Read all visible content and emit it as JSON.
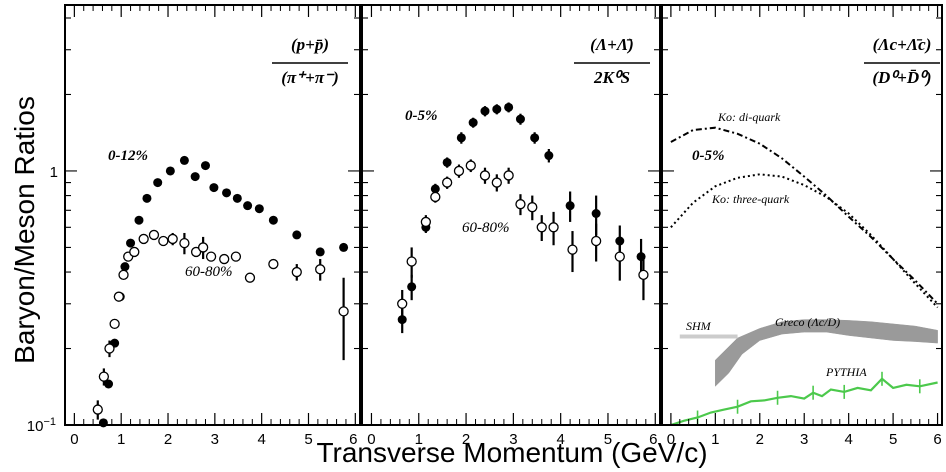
{
  "chart_data": {
    "type": "scatter",
    "ylabel": "Baryon/Meson Ratios",
    "xlabel": "Transverse Momentum (GeV/c)",
    "y_scale": "log",
    "ylim": [
      0.1,
      4.5
    ],
    "y_ticks": [
      {
        "value": 0.1,
        "base": "10",
        "exp": "−1"
      },
      {
        "value": 1,
        "label": "1"
      }
    ],
    "xlim": [
      -0.2,
      6.1
    ],
    "x_ticks": [
      "0",
      "1",
      "2",
      "3",
      "4",
      "5",
      "6"
    ],
    "panels": [
      {
        "ratio_num": "(p+p̄)",
        "ratio_den": "(π⁺+π⁻)",
        "series": [
          {
            "label": "0-12%",
            "marker": "filled",
            "points": [
              {
                "x": 0.62,
                "y": 0.102
              },
              {
                "x": 0.73,
                "y": 0.145
              },
              {
                "x": 0.86,
                "y": 0.21
              },
              {
                "x": 0.98,
                "y": 0.32
              },
              {
                "x": 1.08,
                "y": 0.42
              },
              {
                "x": 1.2,
                "y": 0.52
              },
              {
                "x": 1.38,
                "y": 0.64
              },
              {
                "x": 1.55,
                "y": 0.78
              },
              {
                "x": 1.78,
                "y": 0.9
              },
              {
                "x": 2.05,
                "y": 1.0
              },
              {
                "x": 2.35,
                "y": 1.1
              },
              {
                "x": 2.58,
                "y": 0.95
              },
              {
                "x": 2.8,
                "y": 1.05
              },
              {
                "x": 2.98,
                "y": 0.86
              },
              {
                "x": 3.25,
                "y": 0.82
              },
              {
                "x": 3.48,
                "y": 0.78
              },
              {
                "x": 3.7,
                "y": 0.73
              },
              {
                "x": 3.95,
                "y": 0.71
              },
              {
                "x": 4.25,
                "y": 0.64
              },
              {
                "x": 4.75,
                "y": 0.56
              },
              {
                "x": 5.25,
                "y": 0.48
              },
              {
                "x": 5.75,
                "y": 0.5
              }
            ]
          },
          {
            "label": "60-80%",
            "marker": "open",
            "points": [
              {
                "x": 0.5,
                "y": 0.115,
                "err": 0.01
              },
              {
                "x": 0.63,
                "y": 0.155,
                "err": 0.012
              },
              {
                "x": 0.75,
                "y": 0.2,
                "err": 0.015
              },
              {
                "x": 0.86,
                "y": 0.25
              },
              {
                "x": 0.95,
                "y": 0.32
              },
              {
                "x": 1.05,
                "y": 0.39
              },
              {
                "x": 1.15,
                "y": 0.46
              },
              {
                "x": 1.28,
                "y": 0.48
              },
              {
                "x": 1.48,
                "y": 0.54
              },
              {
                "x": 1.7,
                "y": 0.56
              },
              {
                "x": 1.9,
                "y": 0.53
              },
              {
                "x": 2.1,
                "y": 0.54,
                "err": 0.03
              },
              {
                "x": 2.35,
                "y": 0.52,
                "err": 0.05
              },
              {
                "x": 2.6,
                "y": 0.48
              },
              {
                "x": 2.75,
                "y": 0.5,
                "err": 0.05
              },
              {
                "x": 2.92,
                "y": 0.46
              },
              {
                "x": 3.2,
                "y": 0.45
              },
              {
                "x": 3.45,
                "y": 0.46
              },
              {
                "x": 3.75,
                "y": 0.38
              },
              {
                "x": 4.25,
                "y": 0.43
              },
              {
                "x": 4.75,
                "y": 0.4,
                "err": 0.03
              },
              {
                "x": 5.25,
                "y": 0.41,
                "err": 0.04
              },
              {
                "x": 5.75,
                "y": 0.28,
                "err": 0.1
              }
            ]
          }
        ]
      },
      {
        "ratio_num": "(Λ+Λ̄)",
        "ratio_den": "2K⁰S",
        "series": [
          {
            "label": "0-5%",
            "marker": "filled",
            "points": [
              {
                "x": 0.65,
                "y": 0.26,
                "err": 0.03
              },
              {
                "x": 0.85,
                "y": 0.35,
                "err": 0.04
              },
              {
                "x": 1.15,
                "y": 0.6,
                "err": 0.03
              },
              {
                "x": 1.35,
                "y": 0.85,
                "err": 0.04
              },
              {
                "x": 1.6,
                "y": 1.08,
                "err": 0.05
              },
              {
                "x": 1.9,
                "y": 1.35,
                "err": 0.07
              },
              {
                "x": 2.15,
                "y": 1.55,
                "err": 0.07
              },
              {
                "x": 2.4,
                "y": 1.72,
                "err": 0.08
              },
              {
                "x": 2.65,
                "y": 1.75,
                "err": 0.08
              },
              {
                "x": 2.9,
                "y": 1.78,
                "err": 0.08
              },
              {
                "x": 3.15,
                "y": 1.6,
                "err": 0.08
              },
              {
                "x": 3.45,
                "y": 1.35,
                "err": 0.07
              },
              {
                "x": 3.75,
                "y": 1.15,
                "err": 0.07
              },
              {
                "x": 4.2,
                "y": 0.73,
                "err": 0.1
              },
              {
                "x": 4.75,
                "y": 0.68,
                "err": 0.12
              },
              {
                "x": 5.25,
                "y": 0.53,
                "err": 0.08
              },
              {
                "x": 5.7,
                "y": 0.46,
                "err": 0.08
              }
            ]
          },
          {
            "label": "60-80%",
            "marker": "open",
            "points": [
              {
                "x": 0.65,
                "y": 0.3,
                "err": 0.04
              },
              {
                "x": 0.85,
                "y": 0.44,
                "err": 0.06
              },
              {
                "x": 1.15,
                "y": 0.63,
                "err": 0.04
              },
              {
                "x": 1.35,
                "y": 0.79,
                "err": 0.04
              },
              {
                "x": 1.6,
                "y": 0.9,
                "err": 0.05
              },
              {
                "x": 1.85,
                "y": 1.0,
                "err": 0.06
              },
              {
                "x": 2.1,
                "y": 1.05,
                "err": 0.06
              },
              {
                "x": 2.4,
                "y": 0.96,
                "err": 0.07
              },
              {
                "x": 2.65,
                "y": 0.9,
                "err": 0.07
              },
              {
                "x": 2.9,
                "y": 0.96,
                "err": 0.07
              },
              {
                "x": 3.15,
                "y": 0.74,
                "err": 0.07
              },
              {
                "x": 3.4,
                "y": 0.72,
                "err": 0.08
              },
              {
                "x": 3.6,
                "y": 0.6,
                "err": 0.07
              },
              {
                "x": 3.85,
                "y": 0.6,
                "err": 0.09
              },
              {
                "x": 4.25,
                "y": 0.49,
                "err": 0.09
              },
              {
                "x": 4.75,
                "y": 0.53,
                "err": 0.09
              },
              {
                "x": 5.25,
                "y": 0.46,
                "err": 0.09
              },
              {
                "x": 5.75,
                "y": 0.39,
                "err": 0.08
              }
            ]
          }
        ]
      },
      {
        "ratio_num": "(Λc+Λ̄c)",
        "ratio_den": "(D⁰+D̄⁰)",
        "centrality_label": "0-5%",
        "curves": [
          {
            "label": "Ko: di-quark",
            "style": "dashdot",
            "points": [
              {
                "x": 0,
                "y": 1.3
              },
              {
                "x": 0.5,
                "y": 1.45
              },
              {
                "x": 1,
                "y": 1.48
              },
              {
                "x": 1.5,
                "y": 1.4
              },
              {
                "x": 2,
                "y": 1.28
              },
              {
                "x": 2.5,
                "y": 1.12
              },
              {
                "x": 3,
                "y": 0.95
              },
              {
                "x": 3.5,
                "y": 0.8
              },
              {
                "x": 4,
                "y": 0.66
              },
              {
                "x": 4.5,
                "y": 0.55
              },
              {
                "x": 5,
                "y": 0.45
              },
              {
                "x": 5.5,
                "y": 0.37
              },
              {
                "x": 6,
                "y": 0.3
              }
            ]
          },
          {
            "label": "Ko: three-quark",
            "style": "dotted",
            "points": [
              {
                "x": 0,
                "y": 0.6
              },
              {
                "x": 0.5,
                "y": 0.75
              },
              {
                "x": 1,
                "y": 0.87
              },
              {
                "x": 1.5,
                "y": 0.94
              },
              {
                "x": 2,
                "y": 0.97
              },
              {
                "x": 2.5,
                "y": 0.95
              },
              {
                "x": 3,
                "y": 0.88
              },
              {
                "x": 3.5,
                "y": 0.79
              },
              {
                "x": 4,
                "y": 0.68
              },
              {
                "x": 4.5,
                "y": 0.56
              },
              {
                "x": 5,
                "y": 0.45
              },
              {
                "x": 5.5,
                "y": 0.36
              },
              {
                "x": 6,
                "y": 0.29
              }
            ]
          },
          {
            "label": "PYTHIA",
            "style": "green",
            "points": [
              {
                "x": 0,
                "y": 0.1
              },
              {
                "x": 0.3,
                "y": 0.104
              },
              {
                "x": 0.6,
                "y": 0.107
              },
              {
                "x": 0.9,
                "y": 0.112
              },
              {
                "x": 1.2,
                "y": 0.115
              },
              {
                "x": 1.5,
                "y": 0.118
              },
              {
                "x": 1.8,
                "y": 0.124
              },
              {
                "x": 2.1,
                "y": 0.125
              },
              {
                "x": 2.4,
                "y": 0.128
              },
              {
                "x": 2.7,
                "y": 0.13
              },
              {
                "x": 3.0,
                "y": 0.127
              },
              {
                "x": 3.2,
                "y": 0.134
              },
              {
                "x": 3.4,
                "y": 0.13
              },
              {
                "x": 3.6,
                "y": 0.138
              },
              {
                "x": 3.9,
                "y": 0.135
              },
              {
                "x": 4.2,
                "y": 0.14
              },
              {
                "x": 4.5,
                "y": 0.137
              },
              {
                "x": 4.75,
                "y": 0.152
              },
              {
                "x": 5.0,
                "y": 0.14
              },
              {
                "x": 5.3,
                "y": 0.144
              },
              {
                "x": 5.6,
                "y": 0.142
              },
              {
                "x": 6.0,
                "y": 0.147
              }
            ]
          }
        ],
        "bands": [
          {
            "label": "Greco (Λc/D)",
            "upper": [
              {
                "x": 1,
                "y": 0.18
              },
              {
                "x": 1.5,
                "y": 0.22
              },
              {
                "x": 2,
                "y": 0.24
              },
              {
                "x": 2.5,
                "y": 0.255
              },
              {
                "x": 3,
                "y": 0.26
              },
              {
                "x": 3.5,
                "y": 0.26
              },
              {
                "x": 4,
                "y": 0.258
              },
              {
                "x": 4.5,
                "y": 0.255
              },
              {
                "x": 5,
                "y": 0.25
              },
              {
                "x": 5.5,
                "y": 0.245
              },
              {
                "x": 6,
                "y": 0.236
              }
            ],
            "lower": [
              {
                "x": 1,
                "y": 0.142
              },
              {
                "x": 1.3,
                "y": 0.16
              },
              {
                "x": 1.6,
                "y": 0.19
              },
              {
                "x": 2,
                "y": 0.215
              },
              {
                "x": 2.5,
                "y": 0.228
              },
              {
                "x": 3,
                "y": 0.232
              },
              {
                "x": 3.5,
                "y": 0.232
              },
              {
                "x": 4,
                "y": 0.225
              },
              {
                "x": 4.5,
                "y": 0.22
              },
              {
                "x": 5,
                "y": 0.215
              },
              {
                "x": 5.5,
                "y": 0.213
              },
              {
                "x": 6,
                "y": 0.21
              }
            ]
          }
        ],
        "lines": [
          {
            "label": "SHM",
            "x0": 0.2,
            "x1": 1.5,
            "y": 0.223
          }
        ]
      }
    ]
  }
}
